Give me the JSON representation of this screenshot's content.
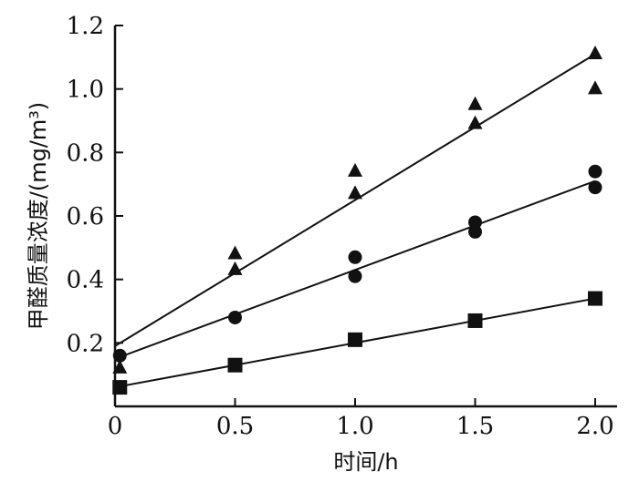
{
  "chart_data": {
    "type": "scatter",
    "xlabel": "时间/h",
    "ylabel": "甲醛质量浓度/(mg/m³)",
    "xlim": [
      0,
      2.0
    ],
    "ylim": [
      0,
      1.2
    ],
    "x_ticks": [
      {
        "value": 0,
        "label": "0"
      },
      {
        "value": 0.5,
        "label": "0.5"
      },
      {
        "value": 1.0,
        "label": "1.0"
      },
      {
        "value": 1.5,
        "label": "1.5"
      },
      {
        "value": 2.0,
        "label": "2.0"
      }
    ],
    "y_ticks": [
      {
        "value": 0.2,
        "label": "0.2"
      },
      {
        "value": 0.4,
        "label": "0.4"
      },
      {
        "value": 0.6,
        "label": "0.6"
      },
      {
        "value": 0.8,
        "label": "0.8"
      },
      {
        "value": 1.0,
        "label": "1.0"
      },
      {
        "value": 1.2,
        "label": "1.2"
      }
    ],
    "series": [
      {
        "marker": "triangle",
        "points": [
          [
            0.02,
            0.12
          ],
          [
            0.5,
            0.48
          ],
          [
            0.5,
            0.43
          ],
          [
            1.0,
            0.74
          ],
          [
            1.0,
            0.67
          ],
          [
            1.5,
            0.95
          ],
          [
            1.5,
            0.89
          ],
          [
            2.0,
            1.11
          ],
          [
            2.0,
            1.0
          ]
        ],
        "fit_line": [
          [
            0.0,
            0.19
          ],
          [
            2.0,
            1.11
          ]
        ]
      },
      {
        "marker": "circle",
        "points": [
          [
            0.02,
            0.16
          ],
          [
            0.5,
            0.28
          ],
          [
            1.0,
            0.47
          ],
          [
            1.0,
            0.41
          ],
          [
            1.5,
            0.58
          ],
          [
            1.5,
            0.55
          ],
          [
            2.0,
            0.74
          ],
          [
            2.0,
            0.69
          ]
        ],
        "fit_line": [
          [
            0.0,
            0.15
          ],
          [
            2.0,
            0.71
          ]
        ]
      },
      {
        "marker": "square",
        "points": [
          [
            0.02,
            0.06
          ],
          [
            0.5,
            0.13
          ],
          [
            1.0,
            0.21
          ],
          [
            1.5,
            0.27
          ],
          [
            2.0,
            0.34
          ]
        ],
        "fit_line": [
          [
            0.0,
            0.06
          ],
          [
            2.0,
            0.34
          ]
        ]
      }
    ],
    "colors": {
      "ink": "#111111"
    },
    "grid": false,
    "legend": "none"
  }
}
